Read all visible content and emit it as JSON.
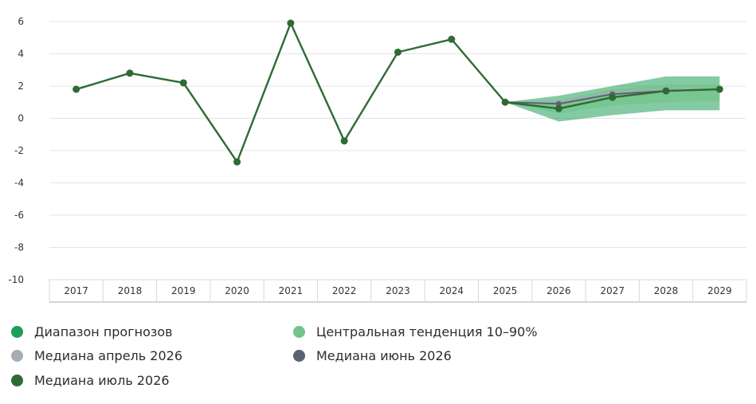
{
  "chart_data": {
    "type": "line",
    "title": "",
    "xlabel": "",
    "ylabel": "",
    "categories": [
      "2017",
      "2018",
      "2019",
      "2020",
      "2021",
      "2022",
      "2023",
      "2024",
      "2025",
      "2026",
      "2027",
      "2028",
      "2029"
    ],
    "y_ticks": [
      "6",
      "4",
      "2",
      "0",
      "-2",
      "-4",
      "-6",
      "-8",
      "-10"
    ],
    "ylim": [
      -10,
      6
    ],
    "grid": true,
    "legend_position": "bottom",
    "series": [
      {
        "name": "Медиана июль 2026",
        "x": [
          "2017",
          "2018",
          "2019",
          "2020",
          "2021",
          "2022",
          "2023",
          "2024",
          "2025",
          "2026",
          "2027",
          "2028",
          "2029"
        ],
        "values": [
          1.8,
          2.8,
          2.2,
          -2.7,
          5.9,
          -1.4,
          4.1,
          4.9,
          1.0,
          0.6,
          1.3,
          1.7,
          1.8
        ],
        "color": "#2e6b34"
      },
      {
        "name": "Медиана июнь 2026",
        "x": [
          "2025",
          "2026",
          "2027",
          "2028",
          "2029"
        ],
        "values": [
          1.0,
          0.9,
          1.5,
          1.7,
          1.8
        ],
        "color": "#5a6370"
      },
      {
        "name": "Медиана апрель 2026",
        "x": [
          "2025",
          "2026",
          "2027",
          "2028",
          "2029"
        ],
        "values": [
          1.0,
          1.0,
          1.6,
          1.8,
          1.8
        ],
        "color": "#a6adb5"
      }
    ],
    "bands": [
      {
        "name": "Диапазон прогнозов",
        "x": [
          "2025",
          "2026",
          "2027",
          "2028",
          "2029"
        ],
        "low": [
          1.0,
          -0.2,
          0.2,
          0.5,
          0.5
        ],
        "high": [
          1.0,
          1.4,
          2.0,
          2.6,
          2.6
        ],
        "color": "#1f9e5a"
      },
      {
        "name": "Центральная тенденция 10–90%",
        "x": [
          "2025",
          "2026",
          "2027",
          "2028",
          "2029"
        ],
        "low": [
          1.0,
          0.3,
          0.8,
          1.0,
          1.1
        ],
        "high": [
          1.0,
          1.1,
          1.8,
          2.1,
          2.1
        ],
        "color": "#74c489"
      }
    ]
  },
  "legend": [
    {
      "label": "Диапазон прогнозов",
      "color": "#1f9e5a"
    },
    {
      "label": "Центральная тенденция 10–90%",
      "color": "#74c489"
    },
    {
      "label": "Медиана апрель 2026",
      "color": "#a6adb5"
    },
    {
      "label": "Медиана июнь 2026",
      "color": "#5a6370"
    },
    {
      "label": "Медиана июль 2026",
      "color": "#2e6b34"
    }
  ]
}
